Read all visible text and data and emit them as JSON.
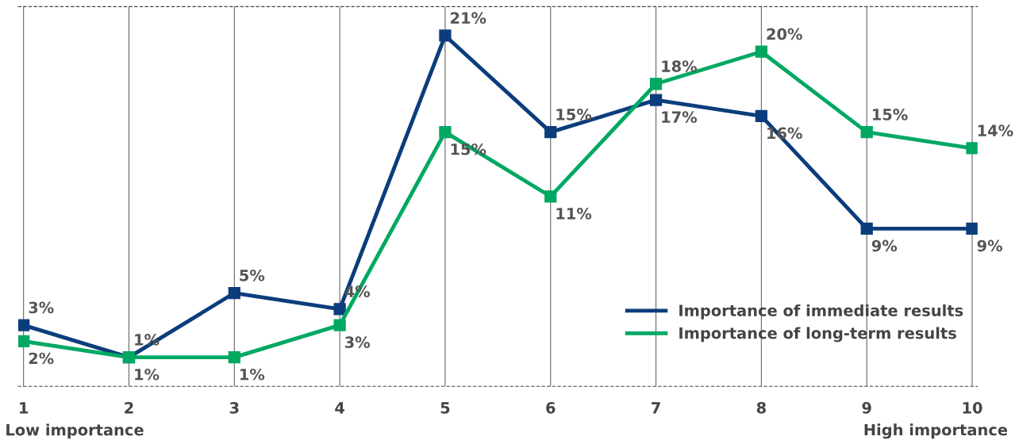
{
  "chart_data": {
    "type": "line",
    "categories": [
      "1",
      "2",
      "3",
      "4",
      "5",
      "6",
      "7",
      "8",
      "9",
      "10"
    ],
    "series": [
      {
        "name": "Importance of immediate results",
        "color": "#0b3d7c",
        "values": [
          3,
          1,
          5,
          4,
          21,
          15,
          17,
          16,
          9,
          9
        ],
        "value_labels": [
          "3%",
          "1%",
          "5%",
          "4%",
          "21%",
          "15%",
          "17%",
          "16%",
          "9%",
          "9%"
        ]
      },
      {
        "name": "Importance of long-term results",
        "color": "#00a862",
        "values": [
          2,
          1,
          1,
          3,
          15,
          11,
          18,
          20,
          15,
          14
        ],
        "value_labels": [
          "2%",
          "1%",
          "1%",
          "3%",
          "15%",
          "11%",
          "18%",
          "20%",
          "15%",
          "14%"
        ]
      }
    ],
    "marker": "square",
    "line_style": "solid",
    "grid": "x",
    "legend": "bottom right",
    "annotations": [
      "Low importance",
      "High importance"
    ]
  }
}
